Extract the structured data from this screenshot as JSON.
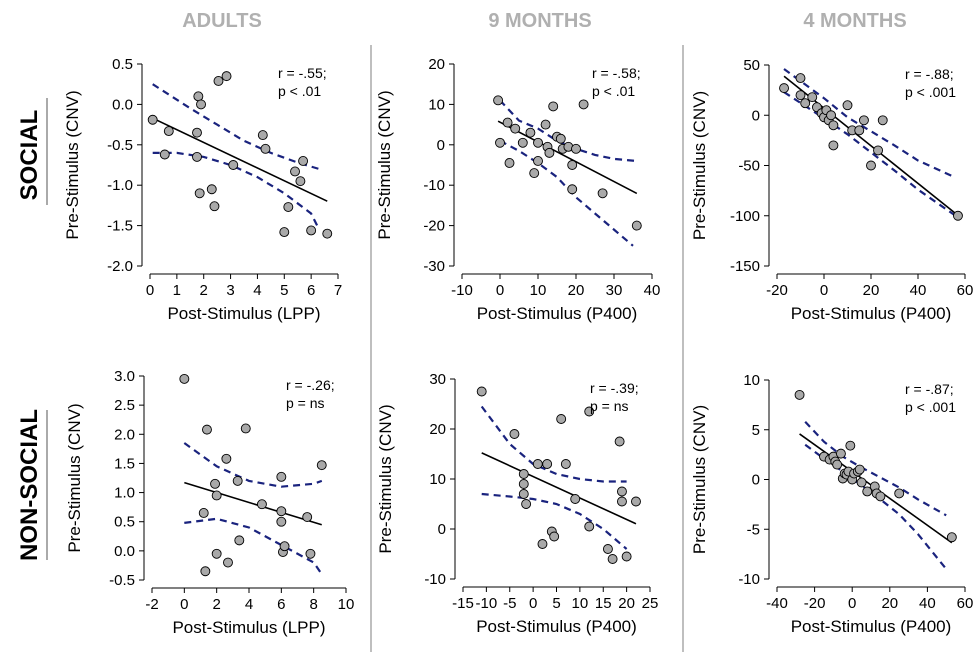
{
  "columns": [
    "ADULTS",
    "9 MONTHS",
    "4 MONTHS"
  ],
  "rows": [
    "SOCIAL",
    "NON-SOCIAL"
  ],
  "colors": {
    "point_fill": "#a9a9a9",
    "point_stroke": "#000000",
    "fit_line": "#000000",
    "ci_line": "#1a237e",
    "title_gray": "#b0b0b0",
    "divider": "#aaaaaa"
  },
  "chart_data": [
    {
      "type": "scatter",
      "row": "SOCIAL",
      "column": "ADULTS",
      "xlabel": "Post-Stimulus (LPP)",
      "ylabel": "Pre-Stimulus (CNV)",
      "xlim": [
        0,
        7
      ],
      "ylim": [
        -2.0,
        0.5
      ],
      "xticks": [
        "0",
        "1",
        "2",
        "3",
        "4",
        "5",
        "6",
        "7"
      ],
      "yticks": [
        "-2.0",
        "-1.5",
        "-1.0",
        "-0.5",
        "0.0",
        "0.5"
      ],
      "annotation": [
        "r = -.55;",
        "p < .01"
      ],
      "points": [
        [
          0.1,
          -0.19
        ],
        [
          0.55,
          -0.62
        ],
        [
          0.7,
          -0.33
        ],
        [
          1.8,
          0.1
        ],
        [
          1.9,
          0.0
        ],
        [
          1.75,
          -0.35
        ],
        [
          1.75,
          -0.65
        ],
        [
          1.85,
          -1.1
        ],
        [
          2.3,
          -1.05
        ],
        [
          2.4,
          -1.26
        ],
        [
          2.55,
          0.29
        ],
        [
          2.85,
          0.35
        ],
        [
          3.1,
          -0.75
        ],
        [
          4.2,
          -0.38
        ],
        [
          4.3,
          -0.55
        ],
        [
          5.0,
          -1.58
        ],
        [
          5.15,
          -1.27
        ],
        [
          5.4,
          -0.83
        ],
        [
          5.6,
          -0.95
        ],
        [
          5.7,
          -0.7
        ],
        [
          6.0,
          -1.56
        ],
        [
          6.6,
          -1.6
        ]
      ],
      "fit": {
        "slope": -0.158,
        "intercept": -0.155
      },
      "ci_upper": [
        [
          0.1,
          0.25
        ],
        [
          1.5,
          -0.05
        ],
        [
          2.5,
          -0.25
        ],
        [
          3.5,
          -0.45
        ],
        [
          4.5,
          -0.6
        ],
        [
          5.5,
          -0.72
        ],
        [
          6.3,
          -0.8
        ]
      ],
      "ci_lower": [
        [
          0.1,
          -0.6
        ],
        [
          1.0,
          -0.6
        ],
        [
          2.0,
          -0.65
        ],
        [
          3.0,
          -0.75
        ],
        [
          4.0,
          -0.9
        ],
        [
          5.0,
          -1.1
        ],
        [
          6.0,
          -1.35
        ],
        [
          6.3,
          -1.55
        ]
      ]
    },
    {
      "type": "scatter",
      "row": "SOCIAL",
      "column": "9 MONTHS",
      "xlabel": "Post-Stimulus (P400)",
      "ylabel": "Pre-Stimulus (CNV)",
      "xlim": [
        -10,
        40
      ],
      "ylim": [
        -30,
        20
      ],
      "xticks": [
        "-10",
        "0",
        "10",
        "20",
        "30",
        "40"
      ],
      "yticks": [
        "-30",
        "-20",
        "-10",
        "0",
        "10",
        "20"
      ],
      "annotation": [
        "r = -.58;",
        "p < .01"
      ],
      "points": [
        [
          -0.5,
          11
        ],
        [
          0,
          0.5
        ],
        [
          2,
          5.5
        ],
        [
          2.5,
          -4.5
        ],
        [
          4,
          4
        ],
        [
          6,
          0.5
        ],
        [
          8,
          3
        ],
        [
          9,
          -7
        ],
        [
          10,
          0.5
        ],
        [
          10,
          -4
        ],
        [
          12,
          5
        ],
        [
          12.5,
          -0.5
        ],
        [
          13,
          -2
        ],
        [
          14,
          9.5
        ],
        [
          15,
          2
        ],
        [
          16,
          1.5
        ],
        [
          16.5,
          -1
        ],
        [
          18,
          -0.5
        ],
        [
          19,
          -5
        ],
        [
          19,
          -11
        ],
        [
          20,
          -1
        ],
        [
          22,
          10
        ],
        [
          27,
          -12
        ],
        [
          36,
          -20
        ]
      ],
      "fit": {
        "slope": -0.49,
        "intercept": 5.6
      },
      "ci_upper": [
        [
          0,
          11
        ],
        [
          5,
          6
        ],
        [
          10,
          4
        ],
        [
          15,
          1
        ],
        [
          20,
          -1
        ],
        [
          25,
          -2.5
        ],
        [
          30,
          -3.5
        ],
        [
          36,
          -4
        ]
      ],
      "ci_lower": [
        [
          0,
          1
        ],
        [
          5,
          -1.5
        ],
        [
          10,
          -4.5
        ],
        [
          15,
          -8
        ],
        [
          20,
          -13
        ],
        [
          25,
          -17
        ],
        [
          30,
          -21
        ],
        [
          35,
          -25
        ]
      ]
    },
    {
      "type": "scatter",
      "row": "SOCIAL",
      "column": "4 MONTHS",
      "xlabel": "Post-Stimulus (P400)",
      "ylabel": "Pre-Stimulus (CNV)",
      "xlim": [
        -20,
        60
      ],
      "ylim": [
        -150,
        50
      ],
      "xticks": [
        "-20",
        "0",
        "20",
        "40",
        "60"
      ],
      "yticks": [
        "-150",
        "-100",
        "-50",
        "0",
        "50"
      ],
      "annotation": [
        "r = -.88;",
        "p < .001"
      ],
      "points": [
        [
          -17,
          27
        ],
        [
          -10,
          37
        ],
        [
          -10,
          20
        ],
        [
          -8,
          12
        ],
        [
          -5,
          18
        ],
        [
          -3,
          8
        ],
        [
          -1,
          2
        ],
        [
          0,
          -2
        ],
        [
          1,
          5
        ],
        [
          2,
          -5
        ],
        [
          3,
          0
        ],
        [
          4,
          -30
        ],
        [
          4,
          -10
        ],
        [
          10,
          10
        ],
        [
          12,
          -15
        ],
        [
          15,
          -15
        ],
        [
          17,
          -5
        ],
        [
          20,
          -50
        ],
        [
          23,
          -35
        ],
        [
          25,
          -5
        ],
        [
          57,
          -100
        ]
      ],
      "fit": {
        "slope": -1.87,
        "intercept": 7
      },
      "ci_upper": [
        [
          -17,
          46
        ],
        [
          0,
          17
        ],
        [
          10,
          -2
        ],
        [
          20,
          -16
        ],
        [
          30,
          -30
        ],
        [
          40,
          -45
        ],
        [
          56,
          -62
        ]
      ],
      "ci_lower": [
        [
          -17,
          23
        ],
        [
          0,
          -3
        ],
        [
          10,
          -19
        ],
        [
          20,
          -37
        ],
        [
          30,
          -55
        ],
        [
          40,
          -74
        ],
        [
          56,
          -100
        ]
      ]
    },
    {
      "type": "scatter",
      "row": "NON-SOCIAL",
      "column": "ADULTS",
      "xlabel": "Post-Stimulus (LPP)",
      "ylabel": "Pre-Stimulus (CNV)",
      "xlim": [
        -2,
        10
      ],
      "ylim": [
        -0.5,
        3.0
      ],
      "xticks": [
        "-2",
        "0",
        "2",
        "4",
        "6",
        "8",
        "10"
      ],
      "yticks": [
        "-0.5",
        "0.0",
        "0.5",
        "1.0",
        "1.5",
        "2.0",
        "2.5",
        "3.0"
      ],
      "annotation": [
        "r = -.26;",
        "p = ns"
      ],
      "points": [
        [
          0,
          2.95
        ],
        [
          1.2,
          0.65
        ],
        [
          1.4,
          2.08
        ],
        [
          1.3,
          -0.35
        ],
        [
          1.9,
          1.15
        ],
        [
          2.0,
          0.95
        ],
        [
          2.0,
          -0.05
        ],
        [
          2.6,
          1.58
        ],
        [
          2.7,
          -0.2
        ],
        [
          3.3,
          1.2
        ],
        [
          3.4,
          0.18
        ],
        [
          3.8,
          2.1
        ],
        [
          4.8,
          0.8
        ],
        [
          6.0,
          0.68
        ],
        [
          6.0,
          0.5
        ],
        [
          6.1,
          -0.02
        ],
        [
          6.2,
          0.08
        ],
        [
          7.6,
          0.58
        ],
        [
          7.8,
          -0.05
        ],
        [
          8.5,
          1.47
        ],
        [
          6.0,
          1.27
        ]
      ],
      "fit": {
        "slope": -0.085,
        "intercept": 1.17
      },
      "ci_upper": [
        [
          0,
          1.85
        ],
        [
          2,
          1.45
        ],
        [
          4,
          1.2
        ],
        [
          6,
          1.1
        ],
        [
          8,
          1.15
        ],
        [
          8.5,
          1.2
        ]
      ],
      "ci_lower": [
        [
          0,
          0.48
        ],
        [
          2,
          0.55
        ],
        [
          4,
          0.4
        ],
        [
          6,
          0.1
        ],
        [
          8,
          -0.2
        ],
        [
          8.5,
          -0.4
        ]
      ]
    },
    {
      "type": "scatter",
      "row": "NON-SOCIAL",
      "column": "9 MONTHS",
      "xlabel": "Post-Stimulus (P400)",
      "ylabel": "Pre-Stimulus (CNV)",
      "xlim": [
        -15,
        25
      ],
      "ylim": [
        -10,
        30
      ],
      "xticks": [
        "-15",
        "-10",
        "-5",
        "0",
        "5",
        "10",
        "15",
        "20",
        "25"
      ],
      "yticks": [
        "-10",
        "0",
        "10",
        "20",
        "30"
      ],
      "annotation": [
        "r = -.39;",
        "p = ns"
      ],
      "points": [
        [
          -11,
          27.5
        ],
        [
          -4,
          19
        ],
        [
          -2,
          11
        ],
        [
          -2,
          9
        ],
        [
          -2,
          7
        ],
        [
          -1.5,
          5
        ],
        [
          1,
          13
        ],
        [
          2,
          -3
        ],
        [
          3,
          13
        ],
        [
          4,
          -0.5
        ],
        [
          4.5,
          -1.5
        ],
        [
          6,
          22
        ],
        [
          7,
          13
        ],
        [
          9,
          6
        ],
        [
          12,
          0.5
        ],
        [
          12,
          23.5
        ],
        [
          16,
          -4
        ],
        [
          17,
          -6
        ],
        [
          18.5,
          17.5
        ],
        [
          19,
          7.5
        ],
        [
          19,
          5.5
        ],
        [
          20,
          -5.5
        ],
        [
          22,
          5.5
        ]
      ],
      "fit": {
        "slope": -0.43,
        "intercept": 10.5
      },
      "ci_upper": [
        [
          -11,
          24.5
        ],
        [
          -5,
          17
        ],
        [
          0,
          13
        ],
        [
          5,
          11
        ],
        [
          10,
          10
        ],
        [
          15,
          9.5
        ],
        [
          20,
          9.5
        ]
      ],
      "ci_lower": [
        [
          -11,
          7
        ],
        [
          -5,
          6.5
        ],
        [
          0,
          6
        ],
        [
          5,
          5
        ],
        [
          10,
          3
        ],
        [
          15,
          0
        ],
        [
          20,
          -4
        ]
      ]
    },
    {
      "type": "scatter",
      "row": "NON-SOCIAL",
      "column": "4 MONTHS",
      "xlabel": "Post-Stimulus (P400)",
      "ylabel": "Pre-Stimulus (CNV)",
      "xlim": [
        -40,
        60
      ],
      "ylim": [
        -10,
        10
      ],
      "xticks": [
        "-40",
        "-20",
        "0",
        "20",
        "40",
        "60"
      ],
      "yticks": [
        "-10",
        "-5",
        "0",
        "5",
        "10"
      ],
      "annotation": [
        "r = -.87;",
        "p < .001"
      ],
      "points": [
        [
          -28,
          8.5
        ],
        [
          -15,
          2.3
        ],
        [
          -12,
          2
        ],
        [
          -10,
          2.3
        ],
        [
          -9,
          1.8
        ],
        [
          -8,
          1.5
        ],
        [
          -6,
          2.6
        ],
        [
          -5,
          0.1
        ],
        [
          -4,
          0.6
        ],
        [
          -3,
          0.5
        ],
        [
          -2,
          0.8
        ],
        [
          -1,
          3.4
        ],
        [
          0,
          0
        ],
        [
          1,
          0.6
        ],
        [
          3,
          0.8
        ],
        [
          4,
          1
        ],
        [
          5,
          -0.3
        ],
        [
          8,
          -1.2
        ],
        [
          12,
          -0.7
        ],
        [
          13,
          -1.4
        ],
        [
          15,
          -1.7
        ],
        [
          25,
          -1.4
        ],
        [
          53,
          -5.8
        ]
      ],
      "fit": {
        "slope": -0.135,
        "intercept": 0.8
      },
      "ci_upper": [
        [
          -25,
          5.8
        ],
        [
          -15,
          3.8
        ],
        [
          -5,
          2.3
        ],
        [
          5,
          1.2
        ],
        [
          15,
          0.2
        ],
        [
          25,
          -0.8
        ],
        [
          35,
          -2
        ],
        [
          50,
          -3.6
        ]
      ],
      "ci_lower": [
        [
          -25,
          3.5
        ],
        [
          -15,
          2.1
        ],
        [
          -5,
          0.8
        ],
        [
          5,
          -0.6
        ],
        [
          15,
          -2
        ],
        [
          25,
          -3.5
        ],
        [
          35,
          -5.5
        ],
        [
          50,
          -9
        ]
      ]
    }
  ]
}
